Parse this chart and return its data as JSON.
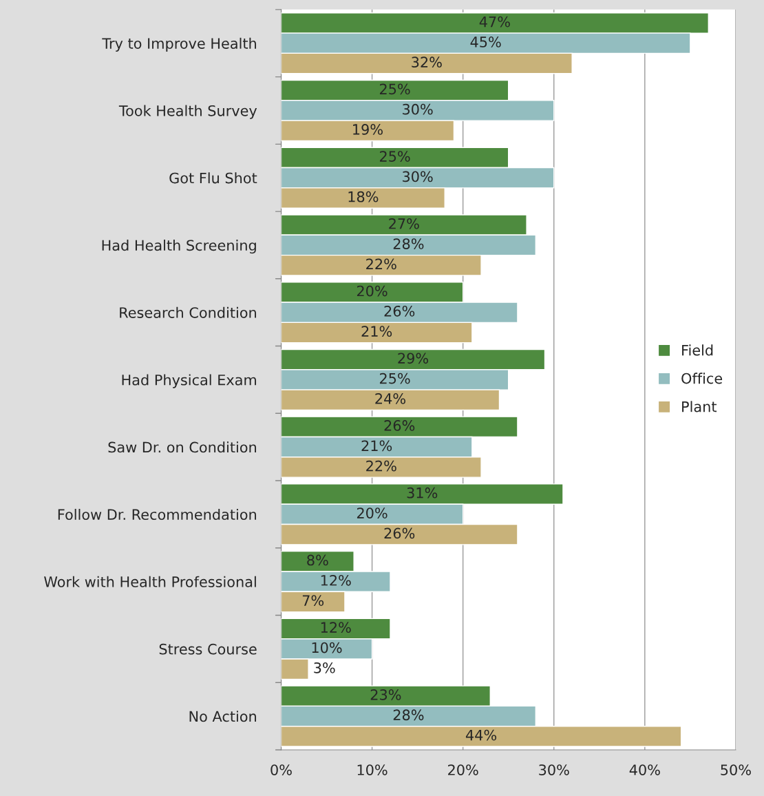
{
  "chart_data": {
    "type": "bar",
    "orientation": "horizontal",
    "categories": [
      "Try to Improve Health",
      "Took Health Survey",
      "Got Flu Shot",
      "Had Health Screening",
      "Research Condition",
      "Had Physical Exam",
      "Saw Dr. on Condition",
      "Follow Dr. Recommendation",
      "Work with Health Professional",
      "Stress Course",
      "No Action"
    ],
    "series": [
      {
        "name": "Field",
        "color": "#4e8b3f",
        "values": [
          47,
          25,
          25,
          27,
          20,
          29,
          26,
          31,
          8,
          12,
          23
        ],
        "value_labels": [
          "47%",
          "25%",
          "25%",
          "27%",
          "20%",
          "29%",
          "26%",
          "31%",
          "8%",
          "12%",
          "23%"
        ]
      },
      {
        "name": "Office",
        "color": "#93bdbf",
        "values": [
          45,
          30,
          30,
          28,
          26,
          25,
          21,
          20,
          12,
          10,
          28
        ],
        "value_labels": [
          "45%",
          "30%",
          "30%",
          "28%",
          "26%",
          "25%",
          "21%",
          "20%",
          "12%",
          "10%",
          "28%"
        ]
      },
      {
        "name": "Plant",
        "color": "#c8b27a",
        "values": [
          32,
          19,
          18,
          22,
          21,
          24,
          22,
          26,
          7,
          3,
          44
        ],
        "value_labels": [
          "32%",
          "19%",
          "18%",
          "22%",
          "21%",
          "24%",
          "22%",
          "26%",
          "7%",
          "3%",
          "44%"
        ]
      }
    ],
    "xlim": [
      0,
      50
    ],
    "xticks": [
      {
        "value": 0,
        "label": "0%"
      },
      {
        "value": 10,
        "label": "10%"
      },
      {
        "value": 20,
        "label": "20%"
      },
      {
        "value": 30,
        "label": "30%"
      },
      {
        "value": 40,
        "label": "40%"
      },
      {
        "value": 50,
        "label": "50%"
      }
    ],
    "grid": "x",
    "legend": "right"
  }
}
